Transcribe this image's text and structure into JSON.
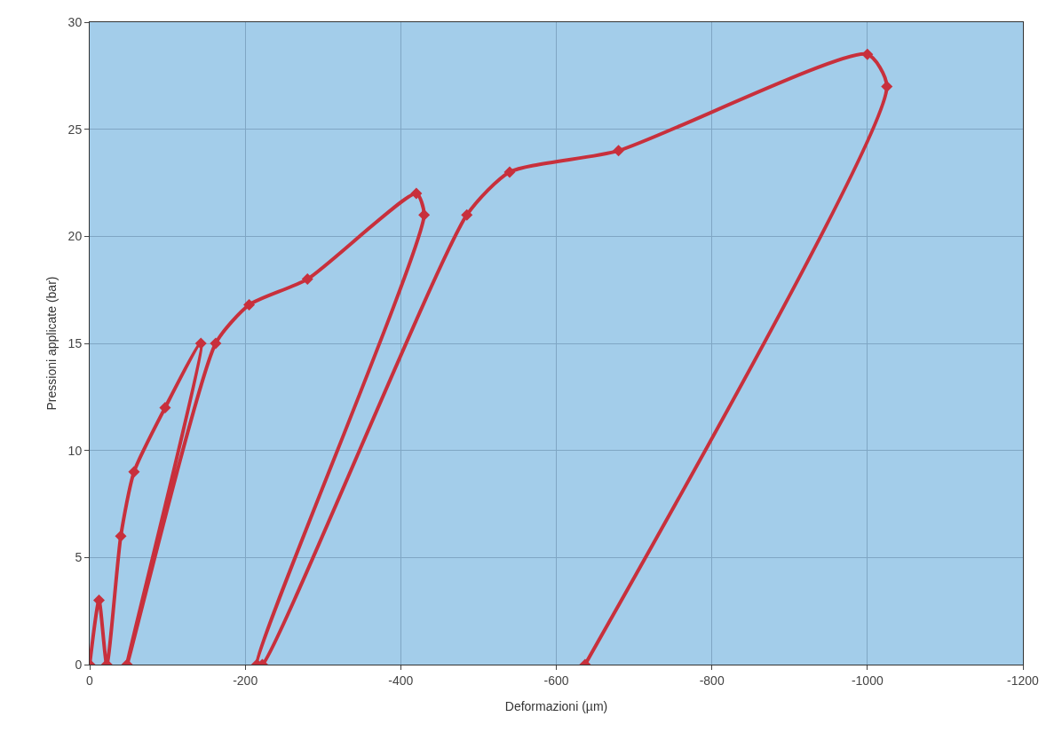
{
  "chart_data": {
    "type": "line",
    "xlabel": "Deformazioni (µm)",
    "ylabel": "Pressioni applicate (bar)",
    "x": [
      0,
      -12,
      -22,
      -40,
      -57,
      -97,
      -143,
      -48,
      -162,
      -205,
      -280,
      -420,
      -430,
      -215,
      -222,
      -485,
      -540,
      -680,
      -1000,
      -1025,
      -637
    ],
    "series": [
      {
        "color": "#c8303c",
        "values": [
          0,
          3,
          0,
          6,
          9,
          12,
          15,
          0,
          15,
          16.8,
          18,
          22,
          21,
          0,
          0,
          21,
          23,
          24,
          28.5,
          27,
          0
        ]
      }
    ],
    "xlim": [
      0,
      -1200
    ],
    "xticks": [
      0,
      -200,
      -400,
      -600,
      -800,
      -1000,
      -1200
    ],
    "ylim": [
      0,
      30
    ],
    "yticks": [
      0,
      5,
      10,
      15,
      20,
      25,
      30
    ],
    "grid": true,
    "marker": "diamond",
    "line_style": "solid"
  }
}
